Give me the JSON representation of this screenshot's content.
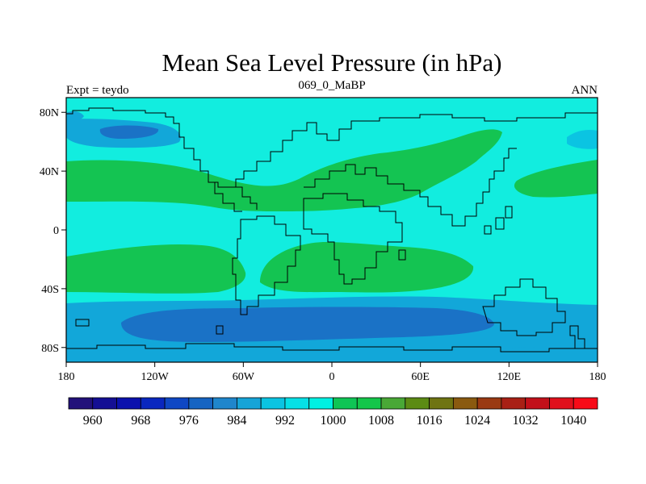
{
  "chart_data": {
    "type": "heatmap",
    "title": "Mean Sea Level Pressure (in hPa)",
    "subtitle_left": "Expt = teydo",
    "subtitle_center": "069_0_MaBP",
    "subtitle_right": "ANN",
    "x_ticks": [
      {
        "value": -180,
        "label": "180"
      },
      {
        "value": -120,
        "label": "120W"
      },
      {
        "value": -60,
        "label": "60W"
      },
      {
        "value": 0,
        "label": "0"
      },
      {
        "value": 60,
        "label": "60E"
      },
      {
        "value": 120,
        "label": "120E"
      },
      {
        "value": 180,
        "label": "180"
      }
    ],
    "y_ticks": [
      {
        "value": 80,
        "label": "80N"
      },
      {
        "value": 40,
        "label": "40N"
      },
      {
        "value": 0,
        "label": "0"
      },
      {
        "value": -40,
        "label": "40S"
      },
      {
        "value": -80,
        "label": "80S"
      }
    ],
    "xlim": [
      -180,
      180
    ],
    "ylim": [
      -90,
      90
    ],
    "colorbar": {
      "levels": [
        960,
        964,
        968,
        972,
        976,
        980,
        984,
        988,
        992,
        996,
        1000,
        1004,
        1008,
        1012,
        1016,
        1020,
        1024,
        1028,
        1032,
        1036,
        1040
      ],
      "colors": [
        "#22117a",
        "#140f94",
        "#0b11ad",
        "#0a27bf",
        "#0f47c4",
        "#1564c2",
        "#1f86cc",
        "#15a4d8",
        "#0bc4e2",
        "#06e0e6",
        "#00f0e2",
        "#0fc555",
        "#14c64a",
        "#49a836",
        "#5c8b14",
        "#6f7412",
        "#8a5a10",
        "#9a3a12",
        "#a92015",
        "#c2101a",
        "#e0101c",
        "#f80b18"
      ],
      "labels": [
        {
          "value": 960,
          "label": "960"
        },
        {
          "value": 968,
          "label": "968"
        },
        {
          "value": 976,
          "label": "976"
        },
        {
          "value": 984,
          "label": "984"
        },
        {
          "value": 992,
          "label": "992"
        },
        {
          "value": 1000,
          "label": "1000"
        },
        {
          "value": 1008,
          "label": "1008"
        },
        {
          "value": 1016,
          "label": "1016"
        },
        {
          "value": 1024,
          "label": "1024"
        },
        {
          "value": 1032,
          "label": "1032"
        },
        {
          "value": 1040,
          "label": "1040"
        }
      ]
    },
    "fields": [
      {
        "name": "background",
        "pressure_band": "1000-1004",
        "color": "#12eddf"
      },
      {
        "name": "nh-subtropical-high-band",
        "pressure_band": "1008-1012",
        "color": "#14c452"
      },
      {
        "name": "sh-subtropical-high-band",
        "pressure_band": "1008-1012",
        "color": "#14c452"
      },
      {
        "name": "southern-ocean-low",
        "pressure_band": "992-996",
        "color": "#12a7d9"
      },
      {
        "name": "southern-ocean-deep-low",
        "pressure_band": "984-988",
        "color": "#1a72c6"
      },
      {
        "name": "aleutian-low",
        "pressure_band": "992-996",
        "color": "#12a7d9"
      },
      {
        "name": "aleutian-deep-low",
        "pressure_band": "984-988",
        "color": "#1a72c6"
      },
      {
        "name": "icelandic-low",
        "pressure_band": "996-1000",
        "color": "#0bc4e2"
      }
    ]
  }
}
